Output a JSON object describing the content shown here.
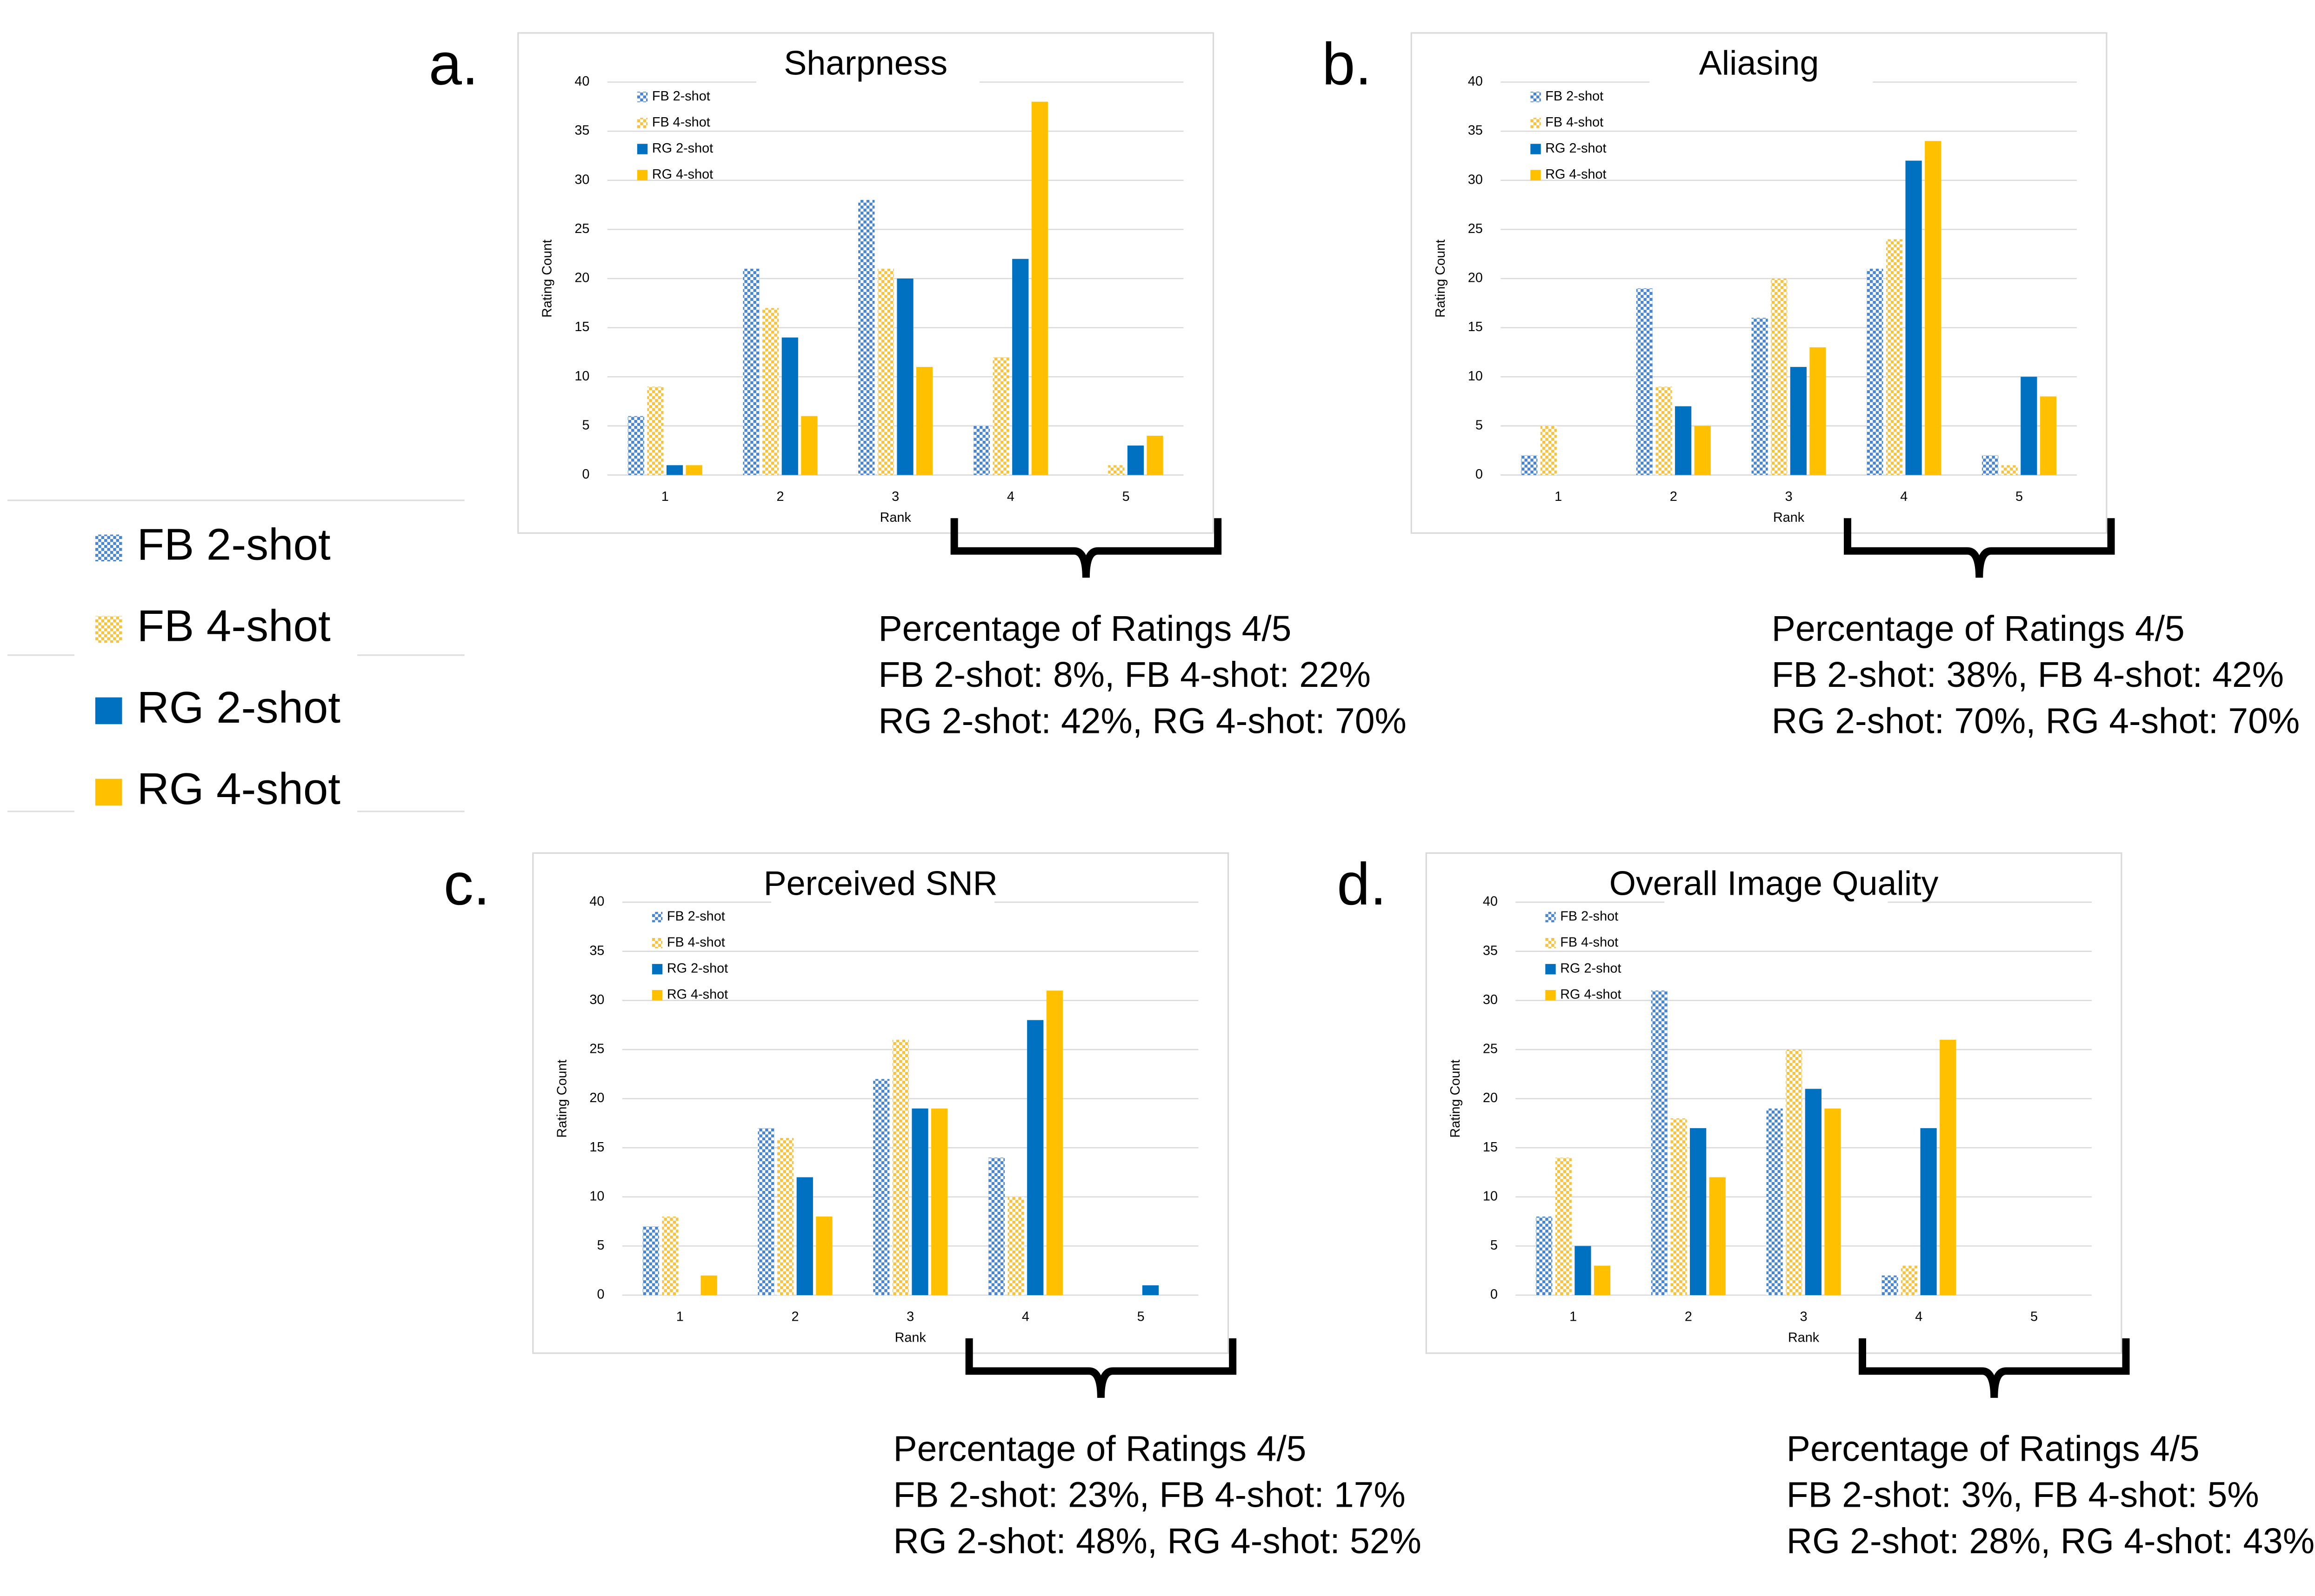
{
  "chart_data": [
    {
      "type": "bar",
      "panel_label": "a.",
      "title": "Sharpness",
      "x_label": "Rank",
      "y_label": "Rating Count",
      "categories": [
        "1",
        "2",
        "3",
        "4",
        "5"
      ],
      "ylim": [
        0,
        40
      ],
      "yticks": [
        0,
        5,
        10,
        15,
        20,
        25,
        30,
        35,
        40
      ],
      "grid": true,
      "legend": "top-left",
      "series": [
        {
          "name": "FB 2-shot",
          "color": "#4a86d0",
          "pattern": "checker",
          "values": [
            6,
            21,
            28,
            5,
            0
          ]
        },
        {
          "name": "FB 4-shot",
          "color": "#f5c242",
          "pattern": "checker",
          "values": [
            9,
            17,
            21,
            12,
            1
          ]
        },
        {
          "name": "RG 2-shot",
          "color": "#0070c0",
          "values": [
            1,
            14,
            20,
            22,
            3
          ]
        },
        {
          "name": "RG 4-shot",
          "color": "#ffc000",
          "values": [
            1,
            6,
            11,
            38,
            4
          ]
        }
      ],
      "annotation": [
        "Percentage of Ratings 4/5",
        "FB 2-shot: 8%, FB 4-shot: 22%",
        "RG 2-shot: 42%, RG 4-shot: 70%"
      ]
    },
    {
      "type": "bar",
      "panel_label": "b.",
      "title": "Aliasing",
      "x_label": "Rank",
      "y_label": "Rating Count",
      "categories": [
        "1",
        "2",
        "3",
        "4",
        "5"
      ],
      "ylim": [
        0,
        40
      ],
      "yticks": [
        0,
        5,
        10,
        15,
        20,
        25,
        30,
        35,
        40
      ],
      "grid": true,
      "legend": "top-left",
      "series": [
        {
          "name": "FB 2-shot",
          "color": "#4a86d0",
          "pattern": "checker",
          "values": [
            2,
            19,
            16,
            21,
            2
          ]
        },
        {
          "name": "FB 4-shot",
          "color": "#f5c242",
          "pattern": "checker",
          "values": [
            5,
            9,
            20,
            24,
            1
          ]
        },
        {
          "name": "RG 2-shot",
          "color": "#0070c0",
          "values": [
            0,
            7,
            11,
            32,
            10
          ]
        },
        {
          "name": "RG 4-shot",
          "color": "#ffc000",
          "values": [
            0,
            5,
            13,
            34,
            8
          ]
        }
      ],
      "annotation": [
        "Percentage of Ratings 4/5",
        "FB 2-shot: 38%, FB 4-shot: 42%",
        "RG 2-shot: 70%, RG 4-shot: 70%"
      ]
    },
    {
      "type": "bar",
      "panel_label": "c.",
      "title": "Perceived SNR",
      "x_label": "Rank",
      "y_label": "Rating Count",
      "categories": [
        "1",
        "2",
        "3",
        "4",
        "5"
      ],
      "ylim": [
        0,
        40
      ],
      "yticks": [
        0,
        5,
        10,
        15,
        20,
        25,
        30,
        35,
        40
      ],
      "grid": true,
      "legend": "top-left",
      "series": [
        {
          "name": "FB 2-shot",
          "color": "#4a86d0",
          "pattern": "checker",
          "values": [
            7,
            17,
            22,
            14,
            0
          ]
        },
        {
          "name": "FB 4-shot",
          "color": "#f5c242",
          "pattern": "checker",
          "values": [
            8,
            16,
            26,
            10,
            0
          ]
        },
        {
          "name": "RG 2-shot",
          "color": "#0070c0",
          "values": [
            0,
            12,
            19,
            28,
            1
          ]
        },
        {
          "name": "RG 4-shot",
          "color": "#ffc000",
          "values": [
            2,
            8,
            19,
            31,
            0
          ]
        }
      ],
      "annotation": [
        "Percentage of Ratings 4/5",
        "FB 2-shot: 23%, FB 4-shot: 17%",
        "RG 2-shot: 48%, RG 4-shot: 52%"
      ]
    },
    {
      "type": "bar",
      "panel_label": "d.",
      "title": "Overall Image Quality",
      "x_label": "Rank",
      "y_label": "Rating Count",
      "categories": [
        "1",
        "2",
        "3",
        "4",
        "5"
      ],
      "ylim": [
        0,
        40
      ],
      "yticks": [
        0,
        5,
        10,
        15,
        20,
        25,
        30,
        35,
        40
      ],
      "grid": true,
      "legend": "top-left",
      "series": [
        {
          "name": "FB 2-shot",
          "color": "#4a86d0",
          "pattern": "checker",
          "values": [
            8,
            31,
            19,
            2,
            0
          ]
        },
        {
          "name": "FB 4-shot",
          "color": "#f5c242",
          "pattern": "checker",
          "values": [
            14,
            18,
            25,
            3,
            0
          ]
        },
        {
          "name": "RG 2-shot",
          "color": "#0070c0",
          "values": [
            5,
            17,
            21,
            17,
            0
          ]
        },
        {
          "name": "RG 4-shot",
          "color": "#ffc000",
          "values": [
            3,
            12,
            19,
            26,
            0
          ]
        }
      ],
      "annotation": [
        "Percentage of Ratings 4/5",
        "FB 2-shot: 3%, FB 4-shot: 5%",
        "RG 2-shot: 28%, RG 4-shot: 43%"
      ]
    }
  ]
}
